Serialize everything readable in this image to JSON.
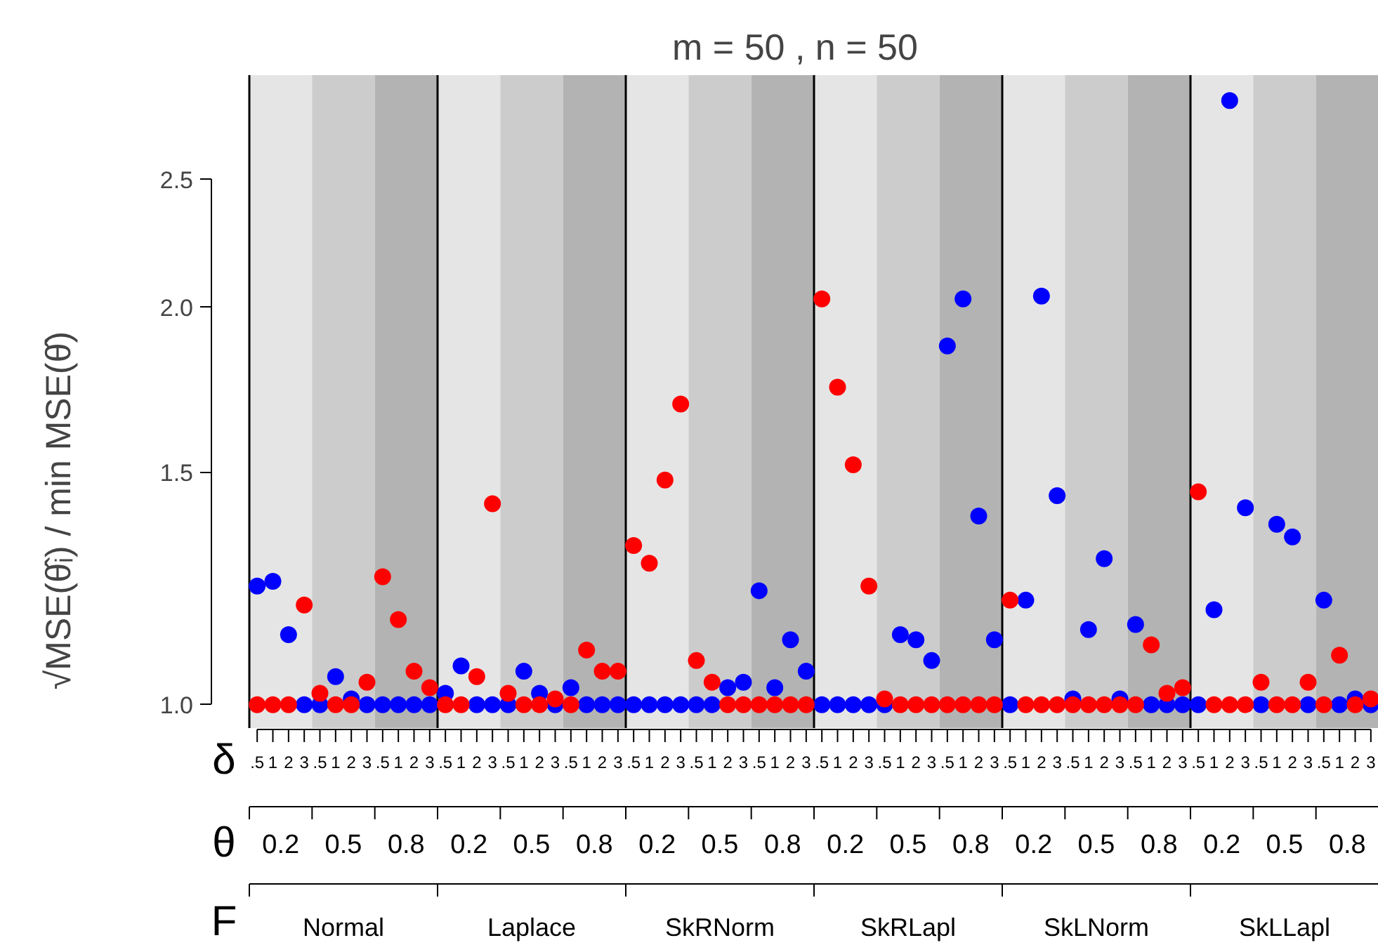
{
  "chart_data": {
    "type": "scatter",
    "title": "m = 50 , n = 50",
    "ylabel": "√MSE(θ̂ᵢ) / min MSE(θ̂)",
    "xlabel": "δ",
    "annotations": [
      "θ",
      "F",
      "0.2",
      "0.5",
      "0.8",
      "0.2",
      "0.5",
      "0.8",
      "0.2",
      "0.5",
      "0.8",
      "0.2",
      "0.5",
      "0.8",
      "0.2",
      "0.5",
      "0.8",
      "0.2",
      "0.5",
      "0.8",
      "Normal",
      "Laplace",
      "SkRNorm",
      "SkRLapl",
      "SkLNorm",
      "SkLLapl"
    ],
    "categories": [
      ".5",
      "1",
      "2",
      "3",
      ".5",
      "1",
      "2",
      "3",
      ".5",
      "1",
      "2",
      "3",
      ".5",
      "1",
      "2",
      "3",
      ".5",
      "1",
      "2",
      "3",
      ".5",
      "1",
      "2",
      "3",
      ".5",
      "1",
      "2",
      "3",
      ".5",
      "1",
      "2",
      "3",
      ".5",
      "1",
      "2",
      "3",
      ".5",
      "1",
      "2",
      "3",
      ".5",
      "1",
      "2",
      "3",
      ".5",
      "1",
      "2",
      "3",
      ".5",
      "1",
      "2",
      "3",
      ".5",
      "1",
      "2",
      "3",
      ".5",
      "1",
      "2",
      "3",
      ".5",
      "1",
      "2",
      "3",
      ".5",
      "1",
      "2",
      "3",
      ".5",
      "1",
      "2",
      "3"
    ],
    "ylim": [
      0.96,
      3.0
    ],
    "yticks": [
      {
        "value": 1,
        "label": "1.0"
      },
      {
        "value": 1.5,
        "label": "1.5"
      },
      {
        "value": 2,
        "label": "2.0"
      },
      {
        "value": 2.5,
        "label": "2.5"
      }
    ],
    "log": true,
    "grid": false,
    "marker": "circle",
    "series": [
      {
        "color": "#0000ff",
        "values": [
          1.23,
          1.24,
          1.13,
          1,
          1,
          1.05,
          1.01,
          1,
          1,
          1,
          1,
          1,
          1.02,
          1.07,
          1,
          1,
          1,
          1.06,
          1.02,
          1,
          1.03,
          1,
          1,
          1,
          1,
          1,
          1,
          1,
          1,
          1,
          1.03,
          1.04,
          1.22,
          1.03,
          1.12,
          1.06,
          1,
          1,
          1,
          1,
          1,
          1.13,
          1.12,
          1.08,
          1.87,
          2.03,
          1.39,
          1.12,
          1,
          1.2,
          2.04,
          1.44,
          1.01,
          1.14,
          1.29,
          1.01,
          1.15,
          1,
          1,
          1,
          1,
          1.18,
          2.87,
          1.41,
          1,
          1.37,
          1.34,
          1,
          1.2,
          1,
          1.01,
          1
        ]
      },
      {
        "color": "#ff0000",
        "values": [
          1,
          1,
          1,
          1.19,
          1.02,
          1,
          1,
          1.04,
          1.25,
          1.16,
          1.06,
          1.03,
          1,
          1,
          1.05,
          1.42,
          1.02,
          1,
          1,
          1.01,
          1,
          1.1,
          1.06,
          1.06,
          1.32,
          1.28,
          1.48,
          1.69,
          1.08,
          1.04,
          1,
          1,
          1,
          1,
          1,
          1,
          2.03,
          1.74,
          1.52,
          1.23,
          1.01,
          1,
          1,
          1,
          1,
          1,
          1,
          1,
          1.2,
          1,
          1,
          1,
          1,
          1,
          1,
          1,
          1,
          1.11,
          1.02,
          1.03,
          1.45,
          1,
          1,
          1,
          1.04,
          1,
          1,
          1.04,
          1,
          1.09,
          1,
          1.01
        ]
      }
    ]
  }
}
